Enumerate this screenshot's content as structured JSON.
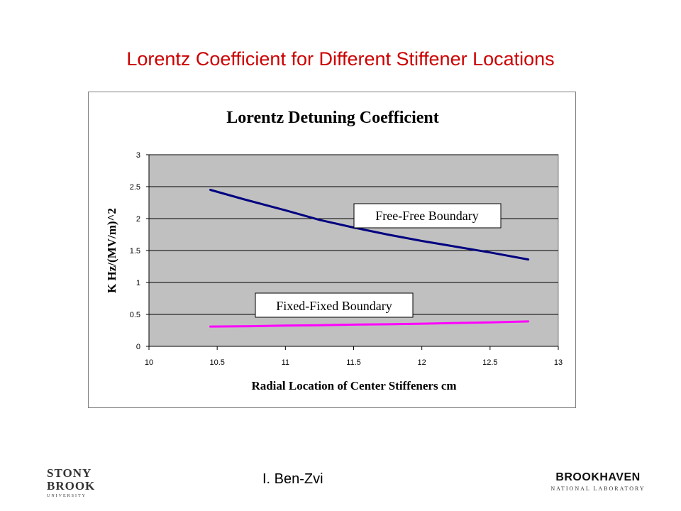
{
  "slide": {
    "title": "Lorentz Coefficient for Different Stiffener Locations",
    "author": "I. Ben-Zvi",
    "logo_left": {
      "line1": "STONY",
      "line2": "BROOK",
      "line3": "UNIVERSITY"
    },
    "logo_right": {
      "line1": "BROOKHAVEN",
      "line2": "NATIONAL LABORATORY"
    }
  },
  "chart_data": {
    "type": "line",
    "title": "Lorentz Detuning Coefficient",
    "xlabel": "Radial Location of Center Stiffeners  cm",
    "ylabel": "K  Hz/(MV/m)^2",
    "xlim": [
      10,
      13
    ],
    "ylim": [
      0,
      3
    ],
    "x_ticks": [
      "10",
      "10.5",
      "11",
      "11.5",
      "12",
      "12.5",
      "13"
    ],
    "y_ticks": [
      "0",
      "0.5",
      "1",
      "1.5",
      "2",
      "2.5",
      "3"
    ],
    "grid": true,
    "plot_background": "#c0c0c0",
    "series": [
      {
        "name": "Free-Free Boundary",
        "color": "#000080",
        "x": [
          10.45,
          10.7,
          11.0,
          11.25,
          11.5,
          11.75,
          12.0,
          12.25,
          12.5,
          12.78
        ],
        "values": [
          2.45,
          2.3,
          2.13,
          1.98,
          1.86,
          1.75,
          1.65,
          1.56,
          1.47,
          1.36
        ]
      },
      {
        "name": "Fixed-Fixed Boundary",
        "color": "#ff00ff",
        "x": [
          10.45,
          10.75,
          11.0,
          11.25,
          11.5,
          11.75,
          12.0,
          12.25,
          12.5,
          12.78
        ],
        "values": [
          0.31,
          0.315,
          0.325,
          0.33,
          0.34,
          0.345,
          0.355,
          0.365,
          0.375,
          0.39
        ]
      }
    ]
  }
}
